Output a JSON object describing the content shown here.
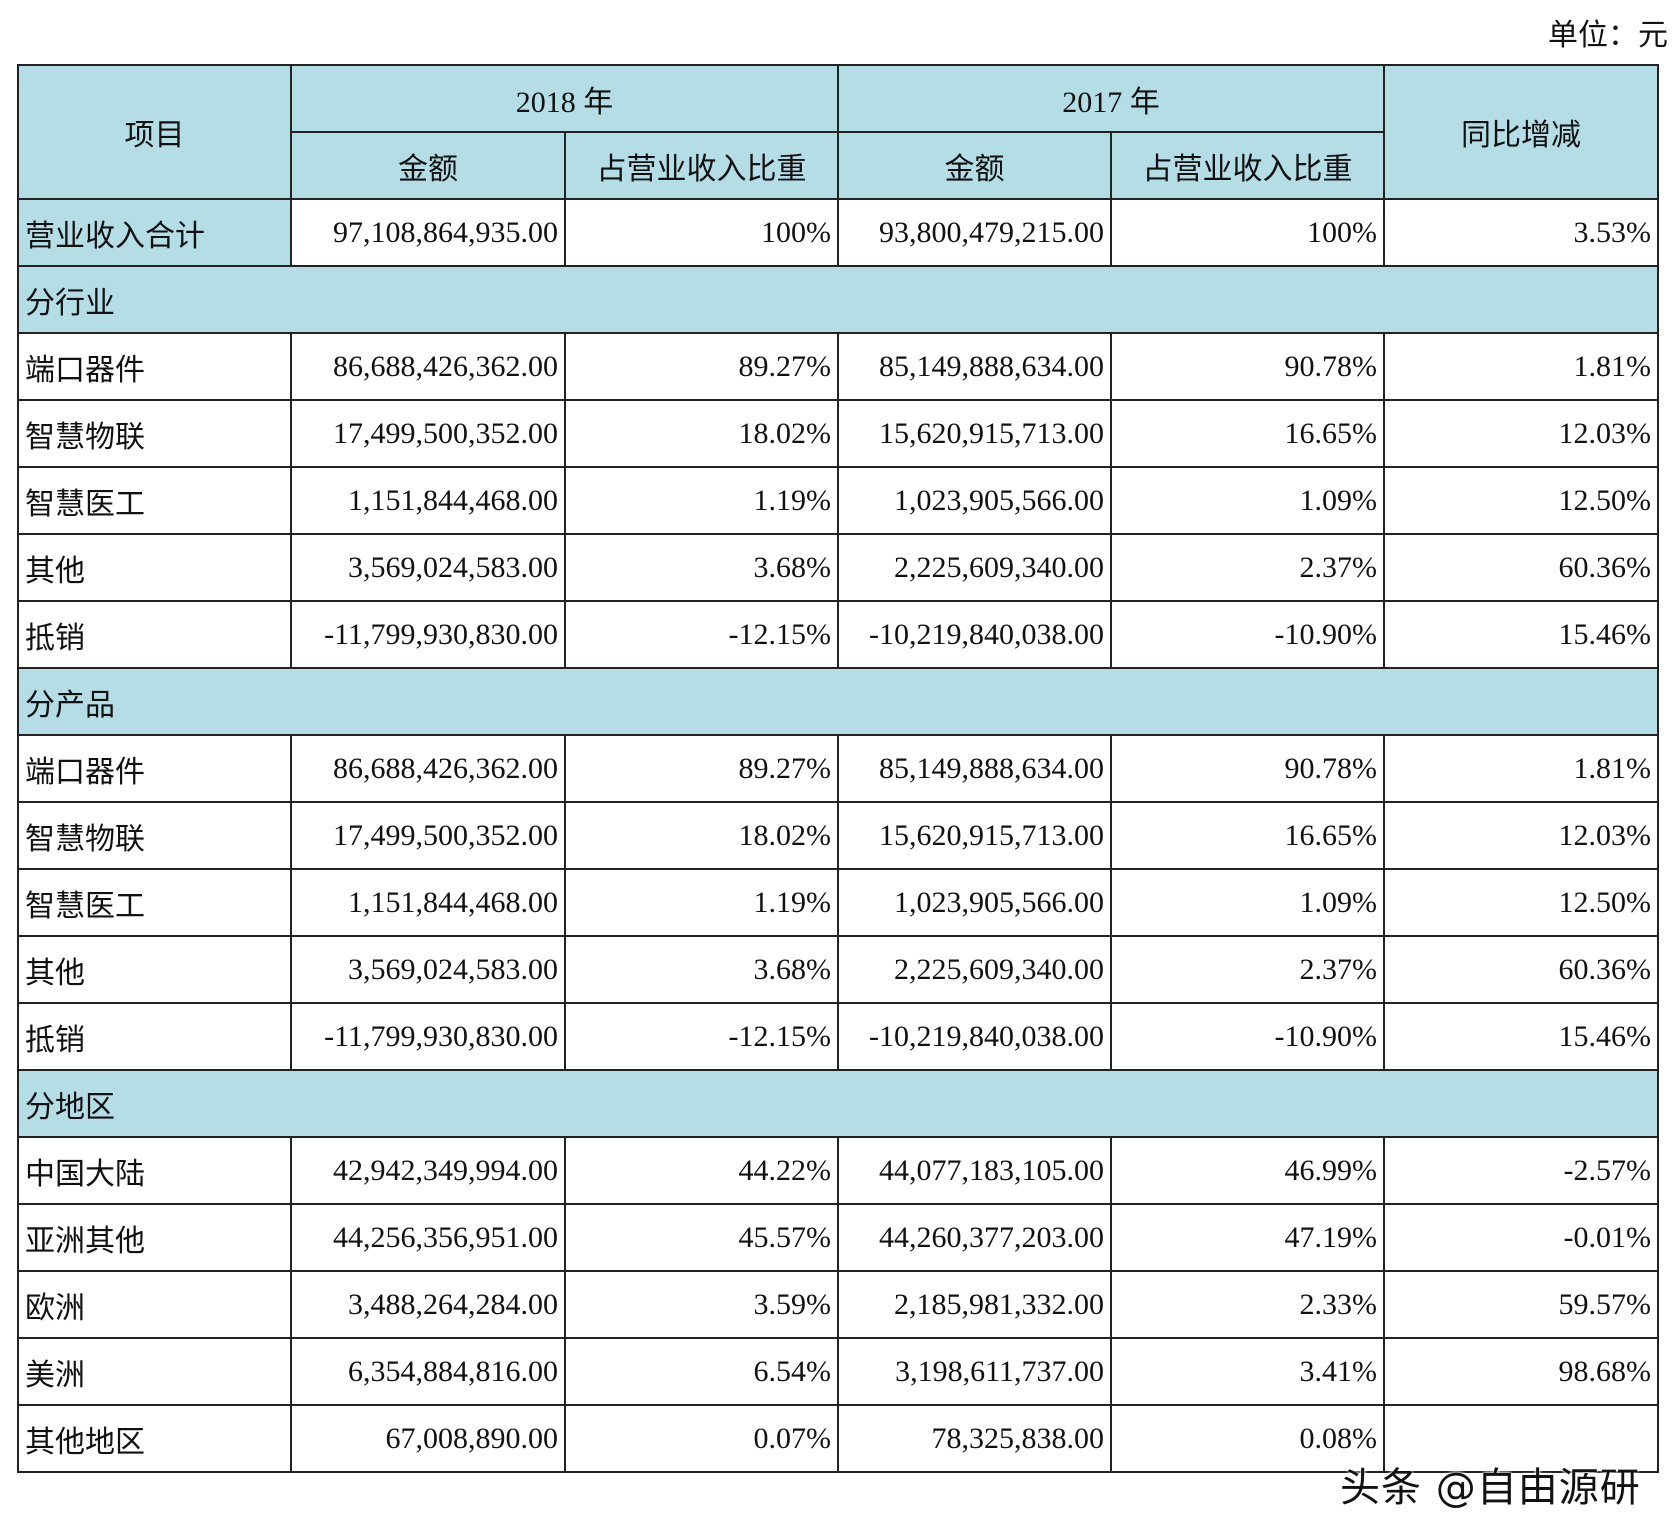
{
  "unit_label": "单位：元",
  "header": {
    "item": "项目",
    "year_2018": "2018 年",
    "year_2017": "2017 年",
    "yoy": "同比增减",
    "amount": "金额",
    "share": "占营业收入比重"
  },
  "total": {
    "label": "营业收入合计",
    "v2018": "97,108,864,935.00",
    "s2018": "100%",
    "v2017": "93,800,479,215.00",
    "s2017": "100%",
    "yoy": "3.53%"
  },
  "sections": [
    {
      "title": "分行业",
      "rows": [
        {
          "label": "端口器件",
          "v2018": "86,688,426,362.00",
          "s2018": "89.27%",
          "v2017": "85,149,888,634.00",
          "s2017": "90.78%",
          "yoy": "1.81%"
        },
        {
          "label": "智慧物联",
          "v2018": "17,499,500,352.00",
          "s2018": "18.02%",
          "v2017": "15,620,915,713.00",
          "s2017": "16.65%",
          "yoy": "12.03%"
        },
        {
          "label": "智慧医工",
          "v2018": "1,151,844,468.00",
          "s2018": "1.19%",
          "v2017": "1,023,905,566.00",
          "s2017": "1.09%",
          "yoy": "12.50%"
        },
        {
          "label": "其他",
          "v2018": "3,569,024,583.00",
          "s2018": "3.68%",
          "v2017": "2,225,609,340.00",
          "s2017": "2.37%",
          "yoy": "60.36%"
        },
        {
          "label": "抵销",
          "v2018": "-11,799,930,830.00",
          "s2018": "-12.15%",
          "v2017": "-10,219,840,038.00",
          "s2017": "-10.90%",
          "yoy": "15.46%"
        }
      ]
    },
    {
      "title": "分产品",
      "rows": [
        {
          "label": "端口器件",
          "v2018": "86,688,426,362.00",
          "s2018": "89.27%",
          "v2017": "85,149,888,634.00",
          "s2017": "90.78%",
          "yoy": "1.81%"
        },
        {
          "label": "智慧物联",
          "v2018": "17,499,500,352.00",
          "s2018": "18.02%",
          "v2017": "15,620,915,713.00",
          "s2017": "16.65%",
          "yoy": "12.03%"
        },
        {
          "label": "智慧医工",
          "v2018": "1,151,844,468.00",
          "s2018": "1.19%",
          "v2017": "1,023,905,566.00",
          "s2017": "1.09%",
          "yoy": "12.50%"
        },
        {
          "label": "其他",
          "v2018": "3,569,024,583.00",
          "s2018": "3.68%",
          "v2017": "2,225,609,340.00",
          "s2017": "2.37%",
          "yoy": "60.36%"
        },
        {
          "label": "抵销",
          "v2018": "-11,799,930,830.00",
          "s2018": "-12.15%",
          "v2017": "-10,219,840,038.00",
          "s2017": "-10.90%",
          "yoy": "15.46%"
        }
      ]
    },
    {
      "title": "分地区",
      "rows": [
        {
          "label": "中国大陆",
          "v2018": "42,942,349,994.00",
          "s2018": "44.22%",
          "v2017": "44,077,183,105.00",
          "s2017": "46.99%",
          "yoy": "-2.57%"
        },
        {
          "label": "亚洲其他",
          "v2018": "44,256,356,951.00",
          "s2018": "45.57%",
          "v2017": "44,260,377,203.00",
          "s2017": "47.19%",
          "yoy": "-0.01%"
        },
        {
          "label": "欧洲",
          "v2018": "3,488,264,284.00",
          "s2018": "3.59%",
          "v2017": "2,185,981,332.00",
          "s2017": "2.33%",
          "yoy": "59.57%"
        },
        {
          "label": "美洲",
          "v2018": "6,354,884,816.00",
          "s2018": "6.54%",
          "v2017": "3,198,611,737.00",
          "s2017": "3.41%",
          "yoy": "98.68%"
        },
        {
          "label": "其他地区",
          "v2018": "67,008,890.00",
          "s2018": "0.07%",
          "v2017": "78,325,838.00",
          "s2017": "0.08%",
          "yoy": ""
        }
      ]
    }
  ],
  "watermark": "头条 @自由源研",
  "colors": {
    "header_bg": "#b5dde6",
    "border": "#222222"
  }
}
